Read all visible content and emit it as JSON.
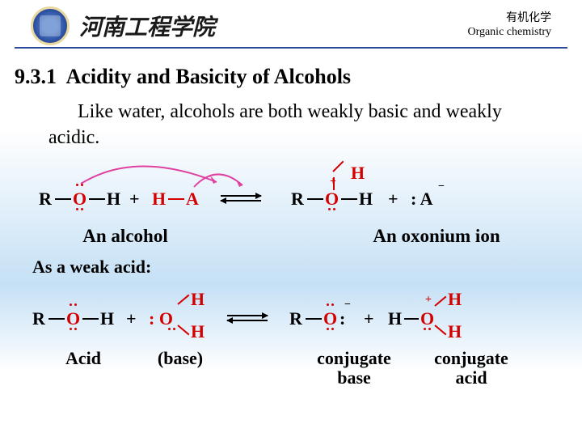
{
  "header": {
    "university_cn": "河南工程学院",
    "course_cn": "有机化学",
    "course_en": "Organic chemistry"
  },
  "section": {
    "number": "9.3.1",
    "title": "Acidity and Basicity of Alcohols"
  },
  "body": "Like water, alcohols are both weakly basic and weakly acidic.",
  "diagram1": {
    "left_label": "An alcohol",
    "right_label": "An oxonium ion",
    "R": "R",
    "O": "O",
    "H": "H",
    "A": "A",
    "plus": "+",
    "colon_A": ": A",
    "minus": "−",
    "plus_sign": "+"
  },
  "subheading": "As a weak acid:",
  "diagram2": {
    "R": "R",
    "O": "O",
    "H": "H",
    "plus": "+",
    "colon_O": ": O",
    "minus": "−",
    "plus_sign": "+"
  },
  "labels2": {
    "acid": "Acid",
    "base": "(base)",
    "conj_base": "conjugate base",
    "conj_acid": "conjugate acid"
  },
  "colors": {
    "red": "#d40000",
    "pink": "#e040a0",
    "blue_rule": "#2a4a9a"
  }
}
